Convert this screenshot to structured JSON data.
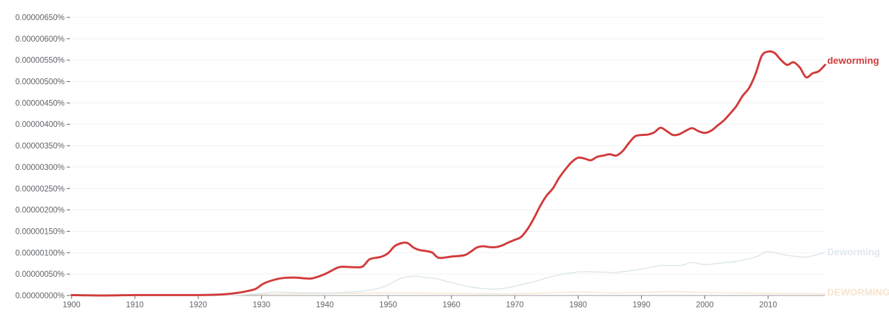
{
  "chart_data": {
    "type": "line",
    "xlim": [
      1900,
      2019
    ],
    "ylim": [
      0,
      6.5e-06
    ],
    "grid": true,
    "legend_placement": "right-end-labels",
    "y_ticks": [
      {
        "value": 0.0,
        "label": "0.00000000%"
      },
      {
        "value": 5e-07,
        "label": "0.00000050%"
      },
      {
        "value": 1e-06,
        "label": "0.00000100%"
      },
      {
        "value": 1.5e-06,
        "label": "0.00000150%"
      },
      {
        "value": 2e-06,
        "label": "0.00000200%"
      },
      {
        "value": 2.5e-06,
        "label": "0.00000250%"
      },
      {
        "value": 3e-06,
        "label": "0.00000300%"
      },
      {
        "value": 3.5e-06,
        "label": "0.00000350%"
      },
      {
        "value": 4e-06,
        "label": "0.00000400%"
      },
      {
        "value": 4.5e-06,
        "label": "0.00000450%"
      },
      {
        "value": 5e-06,
        "label": "0.00000500%"
      },
      {
        "value": 5.5e-06,
        "label": "0.00000550%"
      },
      {
        "value": 6e-06,
        "label": "0.00000600%"
      },
      {
        "value": 6.5e-06,
        "label": "0.00000650%"
      }
    ],
    "x_ticks": [
      {
        "value": 1900,
        "label": "1900"
      },
      {
        "value": 1910,
        "label": "1910"
      },
      {
        "value": 1920,
        "label": "1920"
      },
      {
        "value": 1930,
        "label": "1930"
      },
      {
        "value": 1940,
        "label": "1940"
      },
      {
        "value": 1950,
        "label": "1950"
      },
      {
        "value": 1960,
        "label": "1960"
      },
      {
        "value": 1970,
        "label": "1970"
      },
      {
        "value": 1980,
        "label": "1980"
      },
      {
        "value": 1990,
        "label": "1990"
      },
      {
        "value": 2000,
        "label": "2000"
      },
      {
        "value": 2010,
        "label": "2010"
      }
    ],
    "series": [
      {
        "name": "deworming",
        "color": "#d23a3a",
        "x": [
          1900,
          1905,
          1910,
          1915,
          1920,
          1923,
          1925,
          1927,
          1929,
          1930,
          1931,
          1933,
          1935,
          1937,
          1938,
          1940,
          1942,
          1943,
          1945,
          1946,
          1947,
          1948,
          1949,
          1950,
          1951,
          1952,
          1953,
          1954,
          1955,
          1956,
          1957,
          1958,
          1960,
          1962,
          1963,
          1964,
          1965,
          1966,
          1967,
          1968,
          1969,
          1970,
          1971,
          1972,
          1973,
          1974,
          1975,
          1976,
          1977,
          1978,
          1979,
          1980,
          1981,
          1982,
          1983,
          1984,
          1985,
          1986,
          1987,
          1988,
          1989,
          1990,
          1991,
          1992,
          1993,
          1994,
          1995,
          1996,
          1997,
          1998,
          1999,
          2000,
          2001,
          2002,
          2003,
          2004,
          2005,
          2006,
          2007,
          2008,
          2009,
          2010,
          2011,
          2012,
          2013,
          2014,
          2015,
          2016,
          2017,
          2018,
          2019
        ],
        "y": [
          1e-08,
          0.0,
          1e-08,
          1e-08,
          1e-08,
          2e-08,
          4e-08,
          8e-08,
          1.5e-07,
          2.5e-07,
          3.2e-07,
          4e-07,
          4.2e-07,
          4e-07,
          4e-07,
          5e-07,
          6.5e-07,
          6.7e-07,
          6.6e-07,
          6.8e-07,
          8.4e-07,
          8.8e-07,
          9.1e-07,
          9.9e-07,
          1.15e-06,
          1.22e-06,
          1.23e-06,
          1.12e-06,
          1.06e-06,
          1.04e-06,
          1e-06,
          8.8e-07,
          9.1e-07,
          9.4e-07,
          1.02e-06,
          1.12e-06,
          1.15e-06,
          1.13e-06,
          1.13e-06,
          1.17e-06,
          1.24e-06,
          1.3e-06,
          1.37e-06,
          1.55e-06,
          1.8e-06,
          2.09e-06,
          2.33e-06,
          2.5e-06,
          2.75e-06,
          2.95e-06,
          3.12e-06,
          3.22e-06,
          3.2e-06,
          3.16e-06,
          3.24e-06,
          3.27e-06,
          3.3e-06,
          3.27e-06,
          3.37e-06,
          3.56e-06,
          3.72e-06,
          3.75e-06,
          3.76e-06,
          3.81e-06,
          3.92e-06,
          3.84e-06,
          3.75e-06,
          3.77e-06,
          3.85e-06,
          3.91e-06,
          3.84e-06,
          3.8e-06,
          3.85e-06,
          3.97e-06,
          4.09e-06,
          4.25e-06,
          4.43e-06,
          4.67e-06,
          4.85e-06,
          5.17e-06,
          5.6e-06,
          5.7e-06,
          5.67e-06,
          5.51e-06,
          5.39e-06,
          5.45e-06,
          5.33e-06,
          5.1e-06,
          5.19e-06,
          5.24e-06,
          5.39e-06
        ]
      },
      {
        "name": "Deworming",
        "color": "#dfe8ec",
        "x": [
          1900,
          1910,
          1920,
          1925,
          1930,
          1932,
          1935,
          1940,
          1945,
          1948,
          1950,
          1952,
          1954,
          1956,
          1958,
          1960,
          1963,
          1966,
          1968,
          1970,
          1973,
          1976,
          1980,
          1983,
          1986,
          1990,
          1993,
          1996,
          1998,
          2000,
          2002,
          2005,
          2008,
          2010,
          2013,
          2016,
          2019
        ],
        "y": [
          0.0,
          0.0,
          0.0,
          0.0,
          5e-08,
          8e-08,
          7e-08,
          6e-08,
          9e-08,
          1.5e-07,
          2.5e-07,
          4e-07,
          4.5e-07,
          4.2e-07,
          3.8e-07,
          3e-07,
          2e-07,
          1.5e-07,
          1.6e-07,
          2.2e-07,
          3.2e-07,
          4.5e-07,
          5.5e-07,
          5.5e-07,
          5.4e-07,
          6.2e-07,
          7e-07,
          7e-07,
          7.7e-07,
          7.2e-07,
          7.5e-07,
          8e-07,
          9e-07,
          1.02e-06,
          9.4e-07,
          9e-07,
          1.01e-06
        ]
      },
      {
        "name": "DEWORMING",
        "color": "#f6e4cf",
        "x": [
          1900,
          1920,
          1928,
          1935,
          1950,
          1960,
          1970,
          1980,
          1985,
          1990,
          1995,
          2000,
          2010,
          2019
        ],
        "y": [
          0.0,
          0.0,
          2e-08,
          4e-08,
          6e-08,
          5e-08,
          4e-08,
          8e-08,
          6e-08,
          7e-08,
          9e-08,
          7e-08,
          5e-08,
          4e-08
        ]
      }
    ]
  }
}
